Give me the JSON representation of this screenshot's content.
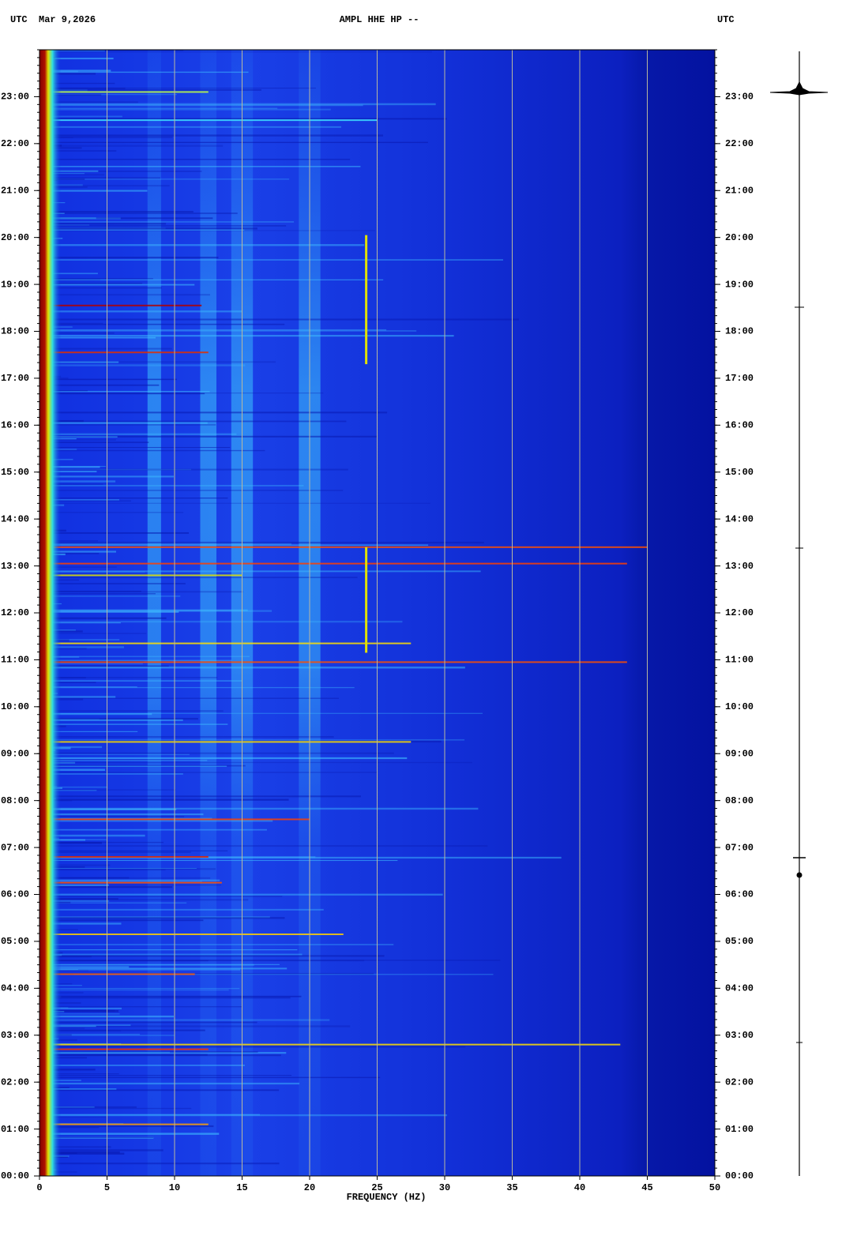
{
  "chart_data": {
    "type": "spectrogram",
    "title": "AMPL HHE HP --",
    "left_label": "UTC  Mar 9,2026",
    "right_label": "UTC",
    "x_label": "FREQUENCY (HZ)",
    "xlim": [
      0,
      50
    ],
    "xticks": [
      0,
      5,
      10,
      15,
      20,
      25,
      30,
      35,
      40,
      45,
      50
    ],
    "ylim": [
      0,
      24
    ],
    "yticks": [
      {
        "value": 0,
        "label": "00:00"
      },
      {
        "value": 1,
        "label": "01:00"
      },
      {
        "value": 2,
        "label": "02:00"
      },
      {
        "value": 3,
        "label": "03:00"
      },
      {
        "value": 4,
        "label": "04:00"
      },
      {
        "value": 5,
        "label": "05:00"
      },
      {
        "value": 6,
        "label": "06:00"
      },
      {
        "value": 7,
        "label": "07:00"
      },
      {
        "value": 8,
        "label": "08:00"
      },
      {
        "value": 9,
        "label": "09:00"
      },
      {
        "value": 10,
        "label": "10:00"
      },
      {
        "value": 11,
        "label": "11:00"
      },
      {
        "value": 12,
        "label": "12:00"
      },
      {
        "value": 13,
        "label": "13:00"
      },
      {
        "value": 14,
        "label": "14:00"
      },
      {
        "value": 15,
        "label": "15:00"
      },
      {
        "value": 16,
        "label": "16:00"
      },
      {
        "value": 17,
        "label": "17:00"
      },
      {
        "value": 18,
        "label": "18:00"
      },
      {
        "value": 19,
        "label": "19:00"
      },
      {
        "value": 20,
        "label": "20:00"
      },
      {
        "value": 21,
        "label": "21:00"
      },
      {
        "value": 22,
        "label": "22:00"
      },
      {
        "value": 23,
        "label": "23:00"
      }
    ],
    "grid": true,
    "grid_color": "#b8b8a0"
  }
}
